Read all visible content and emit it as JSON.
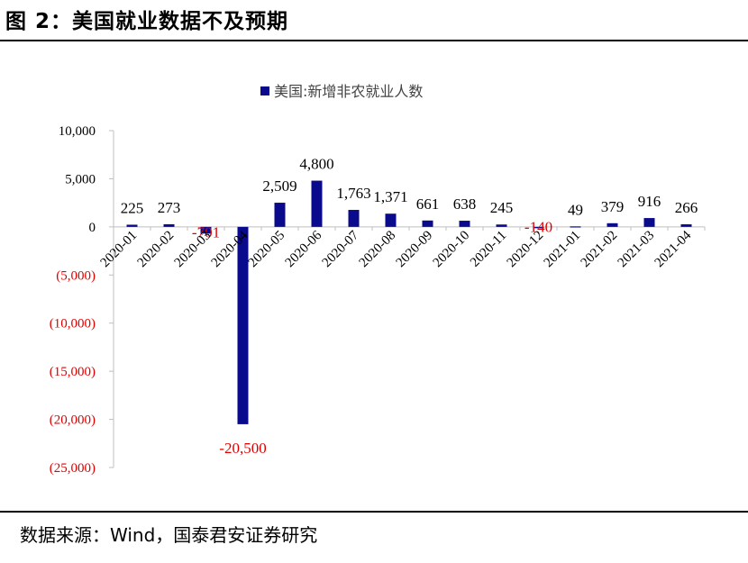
{
  "figure": {
    "title": "图 2：美国就业数据不及预期",
    "source": "数据来源：Wind，国泰君安证券研究"
  },
  "chart_data": {
    "type": "bar",
    "categories": [
      "2020-01",
      "2020-02",
      "2020-03",
      "2020-04",
      "2020-05",
      "2020-06",
      "2020-07",
      "2020-08",
      "2020-09",
      "2020-10",
      "2020-11",
      "2020-12",
      "2021-01",
      "2021-02",
      "2021-03",
      "2021-04"
    ],
    "series": [
      {
        "name": "美国:新增非农就业人数",
        "values": [
          225,
          273,
          -701,
          -20500,
          2509,
          4800,
          1763,
          1371,
          661,
          638,
          245,
          -140,
          49,
          379,
          916,
          266
        ]
      }
    ],
    "data_labels": [
      "225",
      "273",
      "-701",
      "-20,500",
      "2,509",
      "4,800",
      "1,763",
      "1,371",
      "661",
      "638",
      "245",
      "-140",
      "49",
      "379",
      "916",
      "266"
    ],
    "y_ticks": [
      10000,
      5000,
      0,
      -5000,
      -10000,
      -15000,
      -20000,
      -25000
    ],
    "y_tick_labels": [
      "10,000",
      "5,000",
      "0",
      "(5,000)",
      "(10,000)",
      "(15,000)",
      "(20,000)",
      "(25,000)"
    ],
    "ylim": [
      -25000,
      10000
    ],
    "grid": false,
    "legend_position": "top-center",
    "colors": {
      "bar": "#0a0a8c",
      "negative_label": "#e00000",
      "axis": "#bfbfbf"
    }
  }
}
